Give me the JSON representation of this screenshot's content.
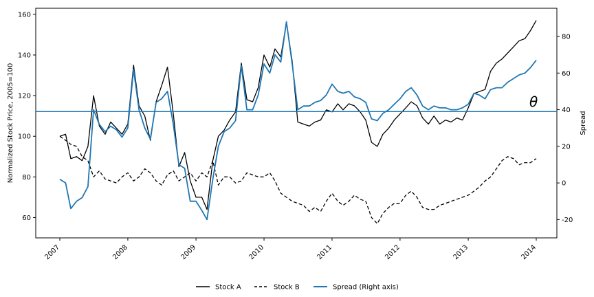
{
  "chart_data": {
    "type": "line",
    "title": "",
    "xlabel": "",
    "ylabel": "Normalized Stock Price, 2005=100",
    "y2label": "Spread",
    "x_ticks": [
      "2007",
      "2008",
      "2009",
      "2010",
      "2011",
      "2012",
      "2013",
      "2014"
    ],
    "xlim": [
      "2007-01-01",
      "2014-01-01"
    ],
    "ylim": [
      50,
      163
    ],
    "y_ticks": [
      60,
      80,
      100,
      120,
      140,
      160
    ],
    "y2lim": [
      -30,
      95.4
    ],
    "y2_ticks": [
      -20,
      0,
      20,
      40,
      60,
      80
    ],
    "legend_position": "below chart, centered",
    "grid": false,
    "series": [
      {
        "name": "Stock A",
        "axis": "left",
        "style": "solid",
        "color": "#000000",
        "points": [
          [
            "2007-01-01",
            100
          ],
          [
            "2007-02-01",
            101
          ],
          [
            "2007-03-01",
            89
          ],
          [
            "2007-04-01",
            90
          ],
          [
            "2007-05-01",
            88
          ],
          [
            "2007-06-01",
            95
          ],
          [
            "2007-07-01",
            120
          ],
          [
            "2007-08-01",
            105
          ],
          [
            "2007-09-01",
            101
          ],
          [
            "2007-10-01",
            107
          ],
          [
            "2007-11-01",
            104
          ],
          [
            "2007-12-01",
            101
          ],
          [
            "2008-01-01",
            106
          ],
          [
            "2008-02-01",
            135
          ],
          [
            "2008-03-01",
            115
          ],
          [
            "2008-04-01",
            110
          ],
          [
            "2008-05-01",
            98
          ],
          [
            "2008-06-01",
            117
          ],
          [
            "2008-07-01",
            125
          ],
          [
            "2008-08-01",
            134
          ],
          [
            "2008-09-01",
            111
          ],
          [
            "2008-10-01",
            85
          ],
          [
            "2008-11-01",
            92
          ],
          [
            "2008-12-01",
            78
          ],
          [
            "2009-01-01",
            70
          ],
          [
            "2009-02-01",
            70
          ],
          [
            "2009-03-01",
            64
          ],
          [
            "2009-04-01",
            88
          ],
          [
            "2009-05-01",
            100
          ],
          [
            "2009-06-01",
            103
          ],
          [
            "2009-07-01",
            108
          ],
          [
            "2009-08-01",
            112
          ],
          [
            "2009-09-01",
            136
          ],
          [
            "2009-10-01",
            118
          ],
          [
            "2009-11-01",
            117
          ],
          [
            "2009-12-01",
            124
          ],
          [
            "2010-01-01",
            140
          ],
          [
            "2010-02-01",
            134
          ],
          [
            "2010-03-01",
            143
          ],
          [
            "2010-04-01",
            139
          ],
          [
            "2010-05-01",
            156
          ],
          [
            "2010-06-01",
            137
          ],
          [
            "2010-07-01",
            107
          ],
          [
            "2010-08-01",
            106
          ],
          [
            "2010-09-01",
            105
          ],
          [
            "2010-10-01",
            107
          ],
          [
            "2010-11-01",
            108
          ],
          [
            "2010-12-01",
            113
          ],
          [
            "2011-01-01",
            112
          ],
          [
            "2011-02-01",
            116
          ],
          [
            "2011-03-01",
            113
          ],
          [
            "2011-04-01",
            116
          ],
          [
            "2011-05-01",
            115
          ],
          [
            "2011-06-01",
            112
          ],
          [
            "2011-07-01",
            108
          ],
          [
            "2011-08-01",
            97
          ],
          [
            "2011-09-01",
            95
          ],
          [
            "2011-10-01",
            101
          ],
          [
            "2011-11-01",
            104
          ],
          [
            "2011-12-01",
            108
          ],
          [
            "2012-01-01",
            111
          ],
          [
            "2012-02-01",
            114
          ],
          [
            "2012-03-01",
            117
          ],
          [
            "2012-04-01",
            115
          ],
          [
            "2012-05-01",
            109
          ],
          [
            "2012-06-01",
            106
          ],
          [
            "2012-07-01",
            110
          ],
          [
            "2012-08-01",
            106
          ],
          [
            "2012-09-01",
            108
          ],
          [
            "2012-10-01",
            107
          ],
          [
            "2012-11-01",
            109
          ],
          [
            "2012-12-01",
            108
          ],
          [
            "2013-01-01",
            114
          ],
          [
            "2013-02-01",
            121
          ],
          [
            "2013-03-01",
            122
          ],
          [
            "2013-04-01",
            123
          ],
          [
            "2013-05-01",
            132
          ],
          [
            "2013-06-01",
            136
          ],
          [
            "2013-07-01",
            138
          ],
          [
            "2013-08-01",
            141
          ],
          [
            "2013-09-01",
            144
          ],
          [
            "2013-10-01",
            147
          ],
          [
            "2013-11-01",
            148
          ],
          [
            "2013-12-01",
            152
          ],
          [
            "2014-01-01",
            157
          ]
        ]
      },
      {
        "name": "Stock B",
        "axis": "left",
        "style": "dashed",
        "color": "#000000",
        "points": [
          [
            "2007-01-01",
            100
          ],
          [
            "2007-02-01",
            98
          ],
          [
            "2007-03-01",
            96
          ],
          [
            "2007-04-01",
            95
          ],
          [
            "2007-05-01",
            90
          ],
          [
            "2007-06-01",
            88
          ],
          [
            "2007-07-01",
            80
          ],
          [
            "2007-08-01",
            83
          ],
          [
            "2007-09-01",
            79
          ],
          [
            "2007-10-01",
            78
          ],
          [
            "2007-11-01",
            77
          ],
          [
            "2007-12-01",
            80
          ],
          [
            "2008-01-01",
            82
          ],
          [
            "2008-02-01",
            78
          ],
          [
            "2008-03-01",
            80
          ],
          [
            "2008-04-01",
            84
          ],
          [
            "2008-05-01",
            82
          ],
          [
            "2008-06-01",
            78
          ],
          [
            "2008-07-01",
            76
          ],
          [
            "2008-08-01",
            81
          ],
          [
            "2008-09-01",
            83
          ],
          [
            "2008-10-01",
            78
          ],
          [
            "2008-11-01",
            80
          ],
          [
            "2008-12-01",
            82
          ],
          [
            "2009-01-01",
            78
          ],
          [
            "2009-02-01",
            82
          ],
          [
            "2009-03-01",
            80
          ],
          [
            "2009-04-01",
            88
          ],
          [
            "2009-05-01",
            76
          ],
          [
            "2009-06-01",
            80
          ],
          [
            "2009-07-01",
            80
          ],
          [
            "2009-08-01",
            77
          ],
          [
            "2009-09-01",
            78
          ],
          [
            "2009-10-01",
            82
          ],
          [
            "2009-11-01",
            81
          ],
          [
            "2009-12-01",
            80
          ],
          [
            "2010-01-01",
            80
          ],
          [
            "2010-02-01",
            82
          ],
          [
            "2010-03-01",
            78
          ],
          [
            "2010-04-01",
            72
          ],
          [
            "2010-05-01",
            70
          ],
          [
            "2010-06-01",
            68
          ],
          [
            "2010-07-01",
            67
          ],
          [
            "2010-08-01",
            66
          ],
          [
            "2010-09-01",
            63
          ],
          [
            "2010-10-01",
            65
          ],
          [
            "2010-11-01",
            63
          ],
          [
            "2010-12-01",
            68
          ],
          [
            "2011-01-01",
            72
          ],
          [
            "2011-02-01",
            68
          ],
          [
            "2011-03-01",
            66
          ],
          [
            "2011-04-01",
            68
          ],
          [
            "2011-05-01",
            71
          ],
          [
            "2011-06-01",
            69
          ],
          [
            "2011-07-01",
            68
          ],
          [
            "2011-08-01",
            60
          ],
          [
            "2011-09-01",
            57
          ],
          [
            "2011-10-01",
            62
          ],
          [
            "2011-11-01",
            65
          ],
          [
            "2011-12-01",
            67
          ],
          [
            "2012-01-01",
            67
          ],
          [
            "2012-02-01",
            71
          ],
          [
            "2012-03-01",
            73
          ],
          [
            "2012-04-01",
            70
          ],
          [
            "2012-05-01",
            65
          ],
          [
            "2012-06-01",
            64
          ],
          [
            "2012-07-01",
            64
          ],
          [
            "2012-08-01",
            66
          ],
          [
            "2012-09-01",
            67
          ],
          [
            "2012-10-01",
            68
          ],
          [
            "2012-11-01",
            69
          ],
          [
            "2012-12-01",
            70
          ],
          [
            "2013-01-01",
            71
          ],
          [
            "2013-02-01",
            73
          ],
          [
            "2013-03-01",
            75
          ],
          [
            "2013-04-01",
            78
          ],
          [
            "2013-05-01",
            80
          ],
          [
            "2013-06-01",
            84
          ],
          [
            "2013-07-01",
            88
          ],
          [
            "2013-08-01",
            90
          ],
          [
            "2013-09-01",
            89
          ],
          [
            "2013-10-01",
            86
          ],
          [
            "2013-11-01",
            87
          ],
          [
            "2013-12-01",
            87
          ],
          [
            "2014-01-01",
            89
          ]
        ]
      },
      {
        "name": "Spread (Right axis)",
        "axis": "right",
        "style": "solid",
        "color": "#1f77b4",
        "points": [
          [
            "2007-01-01",
            2
          ],
          [
            "2007-02-01",
            0
          ],
          [
            "2007-03-01",
            -14
          ],
          [
            "2007-04-01",
            -10
          ],
          [
            "2007-05-01",
            -8
          ],
          [
            "2007-06-01",
            -2
          ],
          [
            "2007-07-01",
            40
          ],
          [
            "2007-08-01",
            32
          ],
          [
            "2007-09-01",
            28
          ],
          [
            "2007-10-01",
            31
          ],
          [
            "2007-11-01",
            29
          ],
          [
            "2007-12-01",
            25
          ],
          [
            "2008-01-01",
            30
          ],
          [
            "2008-02-01",
            62
          ],
          [
            "2008-03-01",
            40
          ],
          [
            "2008-04-01",
            30
          ],
          [
            "2008-05-01",
            24
          ],
          [
            "2008-06-01",
            44
          ],
          [
            "2008-07-01",
            46
          ],
          [
            "2008-08-01",
            50
          ],
          [
            "2008-09-01",
            32
          ],
          [
            "2008-10-01",
            10
          ],
          [
            "2008-11-01",
            8
          ],
          [
            "2008-12-01",
            -10
          ],
          [
            "2009-01-01",
            -10
          ],
          [
            "2009-02-01",
            -15
          ],
          [
            "2009-03-01",
            -20
          ],
          [
            "2009-04-01",
            2
          ],
          [
            "2009-05-01",
            20
          ],
          [
            "2009-06-01",
            28
          ],
          [
            "2009-07-01",
            30
          ],
          [
            "2009-08-01",
            34
          ],
          [
            "2009-09-01",
            64
          ],
          [
            "2009-10-01",
            40
          ],
          [
            "2009-11-01",
            40
          ],
          [
            "2009-12-01",
            48
          ],
          [
            "2010-01-01",
            65
          ],
          [
            "2010-02-01",
            60
          ],
          [
            "2010-03-01",
            70
          ],
          [
            "2010-04-01",
            66
          ],
          [
            "2010-05-01",
            88
          ],
          [
            "2010-06-01",
            65
          ],
          [
            "2010-07-01",
            40
          ],
          [
            "2010-08-01",
            42
          ],
          [
            "2010-09-01",
            42
          ],
          [
            "2010-10-01",
            44
          ],
          [
            "2010-11-01",
            45
          ],
          [
            "2010-12-01",
            48
          ],
          [
            "2011-01-01",
            54
          ],
          [
            "2011-02-01",
            50
          ],
          [
            "2011-03-01",
            49
          ],
          [
            "2011-04-01",
            50
          ],
          [
            "2011-05-01",
            47
          ],
          [
            "2011-06-01",
            46
          ],
          [
            "2011-07-01",
            44
          ],
          [
            "2011-08-01",
            35
          ],
          [
            "2011-09-01",
            34
          ],
          [
            "2011-10-01",
            38
          ],
          [
            "2011-11-01",
            40
          ],
          [
            "2011-12-01",
            43
          ],
          [
            "2012-01-01",
            46
          ],
          [
            "2012-02-01",
            50
          ],
          [
            "2012-03-01",
            52
          ],
          [
            "2012-04-01",
            48
          ],
          [
            "2012-05-01",
            42
          ],
          [
            "2012-06-01",
            40
          ],
          [
            "2012-07-01",
            42
          ],
          [
            "2012-08-01",
            41
          ],
          [
            "2012-09-01",
            41
          ],
          [
            "2012-10-01",
            40
          ],
          [
            "2012-11-01",
            40
          ],
          [
            "2012-12-01",
            41
          ],
          [
            "2013-01-01",
            43
          ],
          [
            "2013-02-01",
            49
          ],
          [
            "2013-03-01",
            48
          ],
          [
            "2013-04-01",
            46
          ],
          [
            "2013-05-01",
            51
          ],
          [
            "2013-06-01",
            52
          ],
          [
            "2013-07-01",
            52
          ],
          [
            "2013-08-01",
            55
          ],
          [
            "2013-09-01",
            57
          ],
          [
            "2013-10-01",
            59
          ],
          [
            "2013-11-01",
            60
          ],
          [
            "2013-12-01",
            63
          ],
          [
            "2014-01-01",
            67
          ]
        ]
      }
    ],
    "reference_line": {
      "axis": "right",
      "y": 39,
      "color": "#1f77b4",
      "label": "θ"
    },
    "legend": [
      {
        "label": "Stock A",
        "style": "solid",
        "color": "#000000"
      },
      {
        "label": "Stock B",
        "style": "dashed",
        "color": "#000000"
      },
      {
        "label": "Spread (Right axis)",
        "style": "solid",
        "color": "#1f77b4"
      }
    ]
  }
}
